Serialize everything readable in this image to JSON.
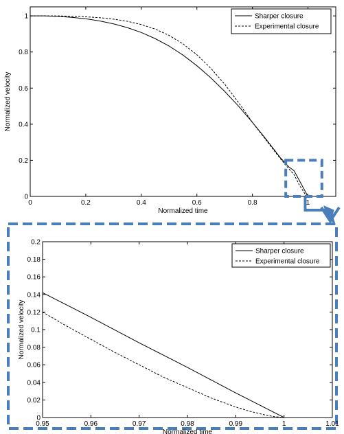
{
  "chart_data": [
    {
      "type": "line",
      "xlabel": "Normalized time",
      "ylabel": "Normalized velocity",
      "xlim": [
        0,
        1.1
      ],
      "ylim": [
        0,
        1.05
      ],
      "xticks": [
        0,
        0.2,
        0.4,
        0.6,
        0.8,
        1
      ],
      "xtick_labels": [
        "0",
        "0.2",
        "0.4",
        "0.6",
        "0.8",
        "1"
      ],
      "yticks": [
        0,
        0.2,
        0.4,
        0.6,
        0.8,
        1
      ],
      "ytick_labels": [
        "0",
        "0.2",
        "0.4",
        "0.6",
        "0.8",
        "1"
      ],
      "grid": false,
      "legend_position": "top-right",
      "series": [
        {
          "name": "Sharper closure",
          "style": "solid",
          "x": [
            0,
            0.05,
            0.1,
            0.15,
            0.2,
            0.25,
            0.3,
            0.35,
            0.4,
            0.45,
            0.5,
            0.55,
            0.6,
            0.65,
            0.7,
            0.75,
            0.8,
            0.85,
            0.9,
            0.93,
            0.95,
            0.97,
            0.99,
            1.0
          ],
          "y": [
            1.0,
            1.0,
            0.997,
            0.992,
            0.984,
            0.972,
            0.956,
            0.935,
            0.908,
            0.874,
            0.833,
            0.783,
            0.724,
            0.657,
            0.582,
            0.5,
            0.41,
            0.315,
            0.215,
            0.165,
            0.142,
            0.085,
            0.028,
            0.0
          ]
        },
        {
          "name": "Experimental closure",
          "style": "dashed",
          "x": [
            0,
            0.05,
            0.1,
            0.15,
            0.2,
            0.25,
            0.3,
            0.35,
            0.4,
            0.45,
            0.5,
            0.55,
            0.6,
            0.65,
            0.7,
            0.75,
            0.8,
            0.85,
            0.9,
            0.93,
            0.95,
            0.97,
            0.99,
            1.0
          ],
          "y": [
            1.0,
            1.0,
            1.0,
            0.998,
            0.995,
            0.99,
            0.982,
            0.97,
            0.952,
            0.927,
            0.892,
            0.845,
            0.785,
            0.71,
            0.622,
            0.52,
            0.41,
            0.31,
            0.21,
            0.155,
            0.12,
            0.06,
            0.012,
            0.0
          ]
        }
      ]
    },
    {
      "type": "line",
      "xlabel": "Normalized time",
      "ylabel": "Normalized velocity",
      "xlim": [
        0.95,
        1.01
      ],
      "ylim": [
        0,
        0.2
      ],
      "xticks": [
        0.95,
        0.96,
        0.97,
        0.98,
        0.99,
        1,
        1.01
      ],
      "xtick_labels": [
        "0.95",
        "0.96",
        "0.97",
        "0.98",
        "0.99",
        "1",
        "1.01"
      ],
      "yticks": [
        0,
        0.02,
        0.04,
        0.06,
        0.08,
        0.1,
        0.12,
        0.14,
        0.16,
        0.18,
        0.2
      ],
      "ytick_labels": [
        "0",
        "0.02",
        "0.04",
        "0.06",
        "0.08",
        "0.1",
        "0.12",
        "0.14",
        "0.16",
        "0.18",
        "0.2"
      ],
      "grid": false,
      "legend_position": "top-right",
      "series": [
        {
          "name": "Sharper closure",
          "style": "solid",
          "x": [
            0.95,
            0.96,
            0.97,
            0.98,
            0.99,
            1.0
          ],
          "y": [
            0.142,
            0.114,
            0.085,
            0.057,
            0.028,
            0.0
          ]
        },
        {
          "name": "Experimental closure",
          "style": "dashed",
          "x": [
            0.95,
            0.955,
            0.96,
            0.965,
            0.97,
            0.975,
            0.98,
            0.985,
            0.99,
            0.993,
            0.996,
            0.998,
            1.0
          ],
          "y": [
            0.12,
            0.104,
            0.089,
            0.074,
            0.06,
            0.046,
            0.034,
            0.022,
            0.012,
            0.007,
            0.003,
            0.001,
            0.0
          ]
        }
      ]
    }
  ],
  "zoom": {
    "target_x": [
      0.92,
      1.05
    ],
    "target_y": [
      0.0,
      0.2
    ],
    "frame_color": "#4a7ebb"
  }
}
